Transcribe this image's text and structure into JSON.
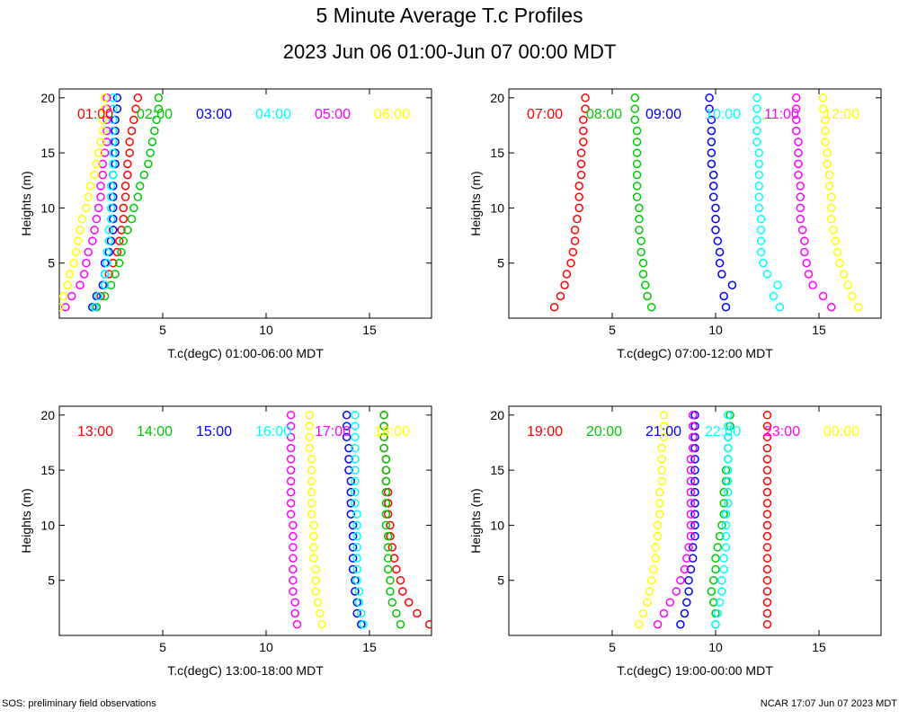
{
  "title": "5 Minute Average T.c Profiles",
  "subtitle": "2023 Jun 06 01:00-Jun 07 00:00 MDT",
  "footer": {
    "left": "SOS: preliminary field observations",
    "right": "NCAR 17:07 Jun 07 2023 MDT"
  },
  "colors": [
    "#ff0000",
    "#00c800",
    "#0000ff",
    "#00ffff",
    "#ff00ff",
    "#ffff00"
  ],
  "chart_data": [
    {
      "type": "scatter",
      "xlabel": "T.c(degC) 01:00-06:00 MDT",
      "ylabel": "Heights (m)",
      "xlim": [
        0,
        18
      ],
      "ylim": [
        0,
        20.8
      ],
      "xticks": [
        5,
        10,
        15
      ],
      "yticks": [
        5,
        10,
        15,
        20
      ],
      "heights": [
        1,
        2,
        3,
        4,
        5,
        6,
        7,
        8,
        9,
        10,
        11,
        12,
        13,
        14,
        15,
        16,
        17,
        18,
        19,
        20
      ],
      "series": [
        {
          "name": "01:00",
          "values": [
            1.8,
            2.0,
            2.2,
            2.4,
            2.6,
            2.8,
            2.9,
            3.0,
            3.1,
            3.1,
            3.2,
            3.2,
            3.3,
            3.3,
            3.4,
            3.4,
            3.5,
            3.6,
            3.7,
            3.8
          ]
        },
        {
          "name": "02:00",
          "values": [
            1.8,
            2.2,
            2.5,
            2.7,
            2.9,
            3.0,
            3.1,
            3.3,
            3.5,
            3.6,
            3.8,
            3.9,
            4.1,
            4.3,
            4.4,
            4.5,
            4.6,
            4.7,
            4.8,
            4.8
          ]
        },
        {
          "name": "03:00",
          "values": [
            1.6,
            1.8,
            2.1,
            2.2,
            2.2,
            2.4,
            2.5,
            2.6,
            2.6,
            2.6,
            2.6,
            2.6,
            2.6,
            2.7,
            2.7,
            2.7,
            2.7,
            2.7,
            2.8,
            2.8
          ]
        },
        {
          "name": "04:00",
          "values": [
            1.7,
            1.9,
            2.2,
            2.2,
            2.3,
            2.3,
            2.4,
            2.4,
            2.5,
            2.5,
            2.5,
            2.5,
            2.6,
            2.6,
            2.6,
            2.6,
            2.6,
            2.6,
            2.6,
            2.6
          ]
        },
        {
          "name": "05:00",
          "values": [
            0.3,
            0.6,
            1.0,
            1.2,
            1.3,
            1.4,
            1.6,
            1.7,
            1.8,
            1.9,
            2.0,
            2.0,
            2.1,
            2.1,
            2.2,
            2.3,
            2.3,
            2.3,
            2.3,
            2.3
          ]
        },
        {
          "name": "06:00",
          "values": [
            0.0,
            0.2,
            0.4,
            0.5,
            0.7,
            0.8,
            0.9,
            1.0,
            1.1,
            1.3,
            1.4,
            1.5,
            1.7,
            1.8,
            1.9,
            2.0,
            2.1,
            2.1,
            2.2,
            2.2
          ]
        }
      ]
    },
    {
      "type": "scatter",
      "xlabel": "T.c(degC) 07:00-12:00 MDT",
      "ylabel": "Heights (m)",
      "xlim": [
        0,
        18
      ],
      "ylim": [
        0,
        20.8
      ],
      "xticks": [
        5,
        10,
        15
      ],
      "yticks": [
        5,
        10,
        15,
        20
      ],
      "heights": [
        1,
        2,
        3,
        4,
        5,
        6,
        7,
        8,
        9,
        10,
        11,
        12,
        13,
        14,
        15,
        16,
        17,
        18,
        19,
        20
      ],
      "series": [
        {
          "name": "07:00",
          "values": [
            2.2,
            2.5,
            2.7,
            2.8,
            3.0,
            3.1,
            3.2,
            3.2,
            3.3,
            3.4,
            3.4,
            3.4,
            3.5,
            3.5,
            3.5,
            3.6,
            3.6,
            3.6,
            3.7,
            3.7
          ]
        },
        {
          "name": "08:00",
          "values": [
            6.9,
            6.7,
            6.6,
            6.5,
            6.5,
            6.4,
            6.4,
            6.3,
            6.3,
            6.3,
            6.2,
            6.2,
            6.2,
            6.2,
            6.2,
            6.2,
            6.2,
            6.1,
            6.1,
            6.1
          ]
        },
        {
          "name": "09:00",
          "values": [
            10.5,
            10.4,
            10.8,
            10.3,
            10.2,
            10.2,
            10.1,
            10.0,
            10.0,
            10.0,
            9.9,
            9.9,
            9.9,
            9.8,
            9.8,
            9.8,
            9.8,
            9.8,
            9.7,
            9.7
          ]
        },
        {
          "name": "10:00",
          "values": [
            13.1,
            12.8,
            13.0,
            12.5,
            12.3,
            12.2,
            12.2,
            12.2,
            12.2,
            12.1,
            12.1,
            12.1,
            12.1,
            12.1,
            12.1,
            12.0,
            12.0,
            12.0,
            12.0,
            12.0
          ]
        },
        {
          "name": "11:00",
          "values": [
            15.6,
            15.2,
            14.7,
            14.5,
            14.4,
            14.3,
            14.3,
            14.2,
            14.1,
            14.1,
            14.1,
            14.1,
            14.0,
            14.0,
            14.0,
            14.0,
            13.9,
            13.9,
            13.9,
            13.9
          ]
        },
        {
          "name": "12:00",
          "values": [
            16.9,
            16.6,
            16.4,
            16.2,
            16.0,
            15.9,
            15.8,
            15.7,
            15.6,
            15.6,
            15.6,
            15.5,
            15.5,
            15.4,
            15.4,
            15.3,
            15.3,
            15.3,
            15.2,
            15.2
          ]
        }
      ]
    },
    {
      "type": "scatter",
      "xlabel": "T.c(degC) 13:00-18:00 MDT",
      "ylabel": "Heights (m)",
      "xlim": [
        0,
        18
      ],
      "ylim": [
        0,
        20.8
      ],
      "xticks": [
        5,
        10,
        15
      ],
      "yticks": [
        5,
        10,
        15,
        20
      ],
      "heights": [
        1,
        2,
        3,
        4,
        5,
        6,
        7,
        8,
        9,
        10,
        11,
        12,
        13,
        14,
        15,
        16,
        17,
        18,
        19,
        20
      ],
      "series": [
        {
          "name": "13:00",
          "values": [
            17.9,
            17.3,
            16.9,
            16.6,
            16.5,
            16.3,
            16.2,
            16.1,
            16.0,
            16.0,
            15.9,
            15.9,
            15.9,
            15.8,
            15.8,
            15.8,
            15.7,
            15.7,
            15.7,
            15.7
          ]
        },
        {
          "name": "14:00",
          "values": [
            16.5,
            16.3,
            16.1,
            16.0,
            16.0,
            15.9,
            15.9,
            15.9,
            15.9,
            15.8,
            15.8,
            15.8,
            15.8,
            15.8,
            15.8,
            15.8,
            15.7,
            15.7,
            15.7,
            15.7
          ]
        },
        {
          "name": "15:00",
          "values": [
            14.6,
            14.4,
            14.4,
            14.3,
            14.3,
            14.2,
            14.2,
            14.2,
            14.2,
            14.2,
            14.1,
            14.1,
            14.1,
            14.1,
            14.0,
            14.0,
            14.0,
            13.9,
            13.9,
            13.9
          ]
        },
        {
          "name": "16:00",
          "values": [
            14.7,
            14.6,
            14.5,
            14.5,
            14.4,
            14.4,
            14.4,
            14.4,
            14.4,
            14.4,
            14.4,
            14.3,
            14.3,
            14.3,
            14.3,
            14.3,
            14.3,
            14.3,
            14.3,
            14.3
          ]
        },
        {
          "name": "17:00",
          "values": [
            11.5,
            11.4,
            11.4,
            11.3,
            11.3,
            11.3,
            11.3,
            11.3,
            11.3,
            11.3,
            11.2,
            11.2,
            11.2,
            11.2,
            11.2,
            11.2,
            11.2,
            11.2,
            11.2,
            11.2
          ]
        },
        {
          "name": "18:00",
          "values": [
            12.7,
            12.6,
            12.5,
            12.4,
            12.4,
            12.4,
            12.3,
            12.3,
            12.3,
            12.3,
            12.2,
            12.2,
            12.2,
            12.2,
            12.2,
            12.2,
            12.1,
            12.1,
            12.1,
            12.1
          ]
        }
      ]
    },
    {
      "type": "scatter",
      "xlabel": "T.c(degC) 19:00-00:00 MDT",
      "ylabel": "Heights (m)",
      "xlim": [
        0,
        18
      ],
      "ylim": [
        0,
        20.8
      ],
      "xticks": [
        5,
        10,
        15
      ],
      "yticks": [
        5,
        10,
        15,
        20
      ],
      "heights": [
        1,
        2,
        3,
        4,
        5,
        6,
        7,
        8,
        9,
        10,
        11,
        12,
        13,
        14,
        15,
        16,
        17,
        18,
        19,
        20
      ],
      "series": [
        {
          "name": "19:00",
          "values": [
            12.5,
            12.5,
            12.5,
            12.5,
            12.5,
            12.5,
            12.5,
            12.5,
            12.5,
            12.5,
            12.5,
            12.5,
            12.5,
            12.5,
            12.5,
            12.5,
            12.5,
            12.5,
            12.5,
            12.5
          ]
        },
        {
          "name": "20:00",
          "values": [
            10.0,
            10.0,
            9.9,
            9.8,
            9.9,
            10.0,
            10.0,
            10.1,
            10.2,
            10.3,
            10.4,
            10.4,
            10.4,
            10.5,
            10.5,
            10.6,
            10.6,
            10.6,
            10.7,
            10.7
          ]
        },
        {
          "name": "21:00",
          "values": [
            8.3,
            8.5,
            8.6,
            8.7,
            8.7,
            8.8,
            8.9,
            8.9,
            9.0,
            9.0,
            9.0,
            9.0,
            9.0,
            9.0,
            9.0,
            9.0,
            9.0,
            9.0,
            9.0,
            9.0
          ]
        },
        {
          "name": "22:00",
          "values": [
            10.0,
            10.1,
            10.2,
            10.3,
            10.3,
            10.4,
            10.4,
            10.5,
            10.5,
            10.5,
            10.5,
            10.6,
            10.6,
            10.6,
            10.6,
            10.6,
            10.6,
            10.6,
            10.6,
            10.6
          ]
        },
        {
          "name": "23:00",
          "values": [
            7.2,
            7.5,
            7.8,
            8.1,
            8.3,
            8.5,
            8.6,
            8.7,
            8.8,
            8.8,
            8.8,
            8.8,
            8.8,
            8.8,
            8.8,
            8.8,
            8.9,
            8.9,
            8.9,
            8.9
          ]
        },
        {
          "name": "00:00",
          "values": [
            6.3,
            6.5,
            6.7,
            6.8,
            6.9,
            7.0,
            7.1,
            7.1,
            7.2,
            7.2,
            7.3,
            7.3,
            7.3,
            7.4,
            7.4,
            7.4,
            7.4,
            7.5,
            7.5,
            7.5
          ]
        }
      ]
    }
  ]
}
